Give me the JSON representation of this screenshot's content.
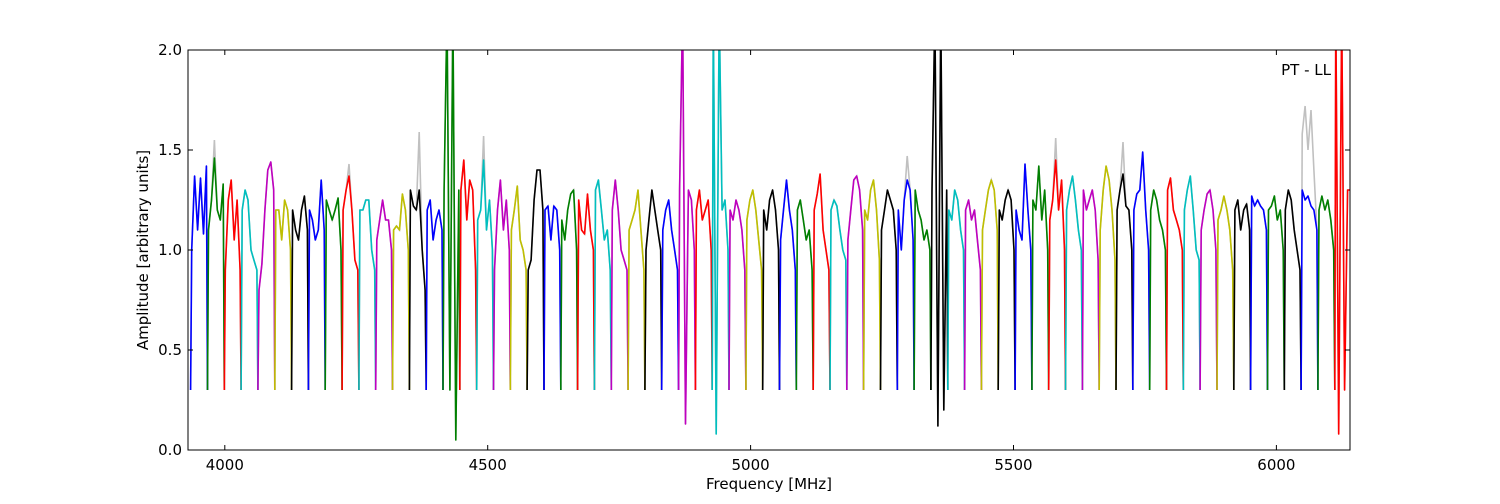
{
  "chart_data": {
    "type": "line",
    "title": "",
    "annotation": "PT - LL",
    "xlabel": "Frequency [MHz]",
    "ylabel": "Amplitude [arbitrary units]",
    "xlim": [
      3930,
      6140
    ],
    "ylim": [
      0,
      2
    ],
    "xticks": [
      4000,
      4500,
      5000,
      5500,
      6000
    ],
    "xtick_labels": [
      "4000",
      "4500",
      "5000",
      "5500",
      "6000"
    ],
    "yticks": [
      0,
      0.5,
      1,
      1.5,
      2
    ],
    "ytick_labels": [
      "0.0",
      "0.5",
      "1.0",
      "1.5",
      "2.0"
    ],
    "grid": false,
    "palette": {
      "b": "#0000ff",
      "g": "#008000",
      "r": "#ff0000",
      "c": "#00bfbf",
      "m": "#bf00bf",
      "y": "#bfbf00",
      "k": "#000000",
      "raw": "#c0c0c0"
    },
    "channel_width_mhz": 32,
    "edge_amplitude": 0.3,
    "channels": [
      {
        "f0": 3935,
        "color": "b",
        "levels": [
          1.0,
          1.37,
          1.1,
          1.36,
          1.08,
          1.42
        ]
      },
      {
        "f0": 3967,
        "color": "g",
        "levels": [
          1.1,
          1.25,
          1.46,
          1.2,
          1.15,
          1.33
        ],
        "raw": [
          1.1,
          1.25,
          1.55,
          1.2,
          1.15,
          1.33
        ]
      },
      {
        "f0": 3999,
        "color": "r",
        "levels": [
          0.9,
          1.25,
          1.35,
          1.05,
          1.25,
          0.9
        ]
      },
      {
        "f0": 4031,
        "color": "c",
        "levels": [
          1.2,
          1.3,
          1.25,
          1.0,
          0.95,
          0.9
        ]
      },
      {
        "f0": 4063,
        "color": "m",
        "levels": [
          0.8,
          0.93,
          1.2,
          1.4,
          1.44,
          1.3
        ]
      },
      {
        "f0": 4095,
        "color": "y",
        "levels": [
          1.2,
          1.2,
          1.05,
          1.25,
          1.2,
          1.0
        ]
      },
      {
        "f0": 4127,
        "color": "k",
        "levels": [
          1.2,
          1.1,
          1.05,
          1.2,
          1.27,
          1.1
        ]
      },
      {
        "f0": 4159,
        "color": "b",
        "levels": [
          1.2,
          1.15,
          1.05,
          1.1,
          1.35,
          1.1
        ]
      },
      {
        "f0": 4191,
        "color": "g",
        "levels": [
          1.25,
          1.2,
          1.15,
          1.2,
          1.26,
          1.0
        ]
      },
      {
        "f0": 4223,
        "color": "r",
        "levels": [
          1.2,
          1.3,
          1.37,
          1.2,
          0.95,
          0.9
        ],
        "raw": [
          1.2,
          1.3,
          1.43,
          1.2,
          0.95,
          0.9
        ]
      },
      {
        "f0": 4255,
        "color": "c",
        "levels": [
          1.2,
          1.2,
          1.25,
          1.25,
          1.0,
          0.9
        ]
      },
      {
        "f0": 4287,
        "color": "m",
        "levels": [
          1.05,
          1.15,
          1.25,
          1.15,
          1.15,
          1.0
        ]
      },
      {
        "f0": 4319,
        "color": "y",
        "levels": [
          1.1,
          1.12,
          1.1,
          1.28,
          1.2,
          1.0
        ]
      },
      {
        "f0": 4351,
        "color": "k",
        "levels": [
          1.3,
          1.22,
          1.2,
          1.3,
          1.0,
          0.8
        ],
        "raw": [
          1.3,
          1.22,
          1.2,
          1.59,
          1.0,
          0.8
        ]
      },
      {
        "f0": 4383,
        "color": "b",
        "levels": [
          1.2,
          1.25,
          1.05,
          1.15,
          1.2,
          1.1
        ]
      },
      {
        "f0": 4415,
        "color": "g",
        "levels": [
          1.3,
          2.2,
          0.3,
          2.2,
          0.05,
          1.3
        ]
      },
      {
        "f0": 4447,
        "color": "r",
        "levels": [
          1.3,
          1.45,
          1.15,
          1.35,
          1.3,
          0.9
        ]
      },
      {
        "f0": 4479,
        "color": "c",
        "levels": [
          1.15,
          1.2,
          1.45,
          1.1,
          1.25,
          1.0
        ],
        "raw": [
          1.15,
          1.2,
          1.57,
          1.1,
          1.25,
          1.0
        ]
      },
      {
        "f0": 4511,
        "color": "m",
        "levels": [
          0.9,
          1.2,
          1.35,
          1.1,
          1.25,
          1.0
        ]
      },
      {
        "f0": 4543,
        "color": "y",
        "levels": [
          1.1,
          1.2,
          1.32,
          1.05,
          1.0,
          0.9
        ]
      },
      {
        "f0": 4575,
        "color": "k",
        "levels": [
          0.9,
          0.95,
          1.25,
          1.4,
          1.4,
          1.2
        ]
      },
      {
        "f0": 4607,
        "color": "b",
        "levels": [
          1.2,
          1.22,
          1.05,
          1.22,
          1.2,
          1.0
        ]
      },
      {
        "f0": 4639,
        "color": "g",
        "levels": [
          1.15,
          1.05,
          1.2,
          1.28,
          1.3,
          1.0
        ]
      },
      {
        "f0": 4671,
        "color": "r",
        "levels": [
          1.25,
          1.1,
          1.08,
          1.28,
          1.1,
          1.0
        ]
      },
      {
        "f0": 4703,
        "color": "c",
        "levels": [
          1.3,
          1.35,
          1.2,
          1.05,
          1.1,
          0.9
        ]
      },
      {
        "f0": 4735,
        "color": "m",
        "levels": [
          1.2,
          1.35,
          1.2,
          1.0,
          0.95,
          0.9
        ]
      },
      {
        "f0": 4767,
        "color": "y",
        "levels": [
          1.1,
          1.15,
          1.2,
          1.3,
          1.1,
          0.9
        ]
      },
      {
        "f0": 4799,
        "color": "k",
        "levels": [
          1.0,
          1.15,
          1.3,
          1.2,
          1.1,
          1.0
        ]
      },
      {
        "f0": 4831,
        "color": "b",
        "levels": [
          1.1,
          1.2,
          1.25,
          1.1,
          1.0,
          0.9
        ]
      },
      {
        "f0": 4863,
        "color": "m",
        "levels": [
          1.3,
          2.2,
          0.13,
          1.3,
          1.25,
          1.0
        ]
      },
      {
        "f0": 4895,
        "color": "r",
        "levels": [
          1.2,
          1.3,
          1.15,
          1.2,
          1.25,
          1.0
        ]
      },
      {
        "f0": 4927,
        "color": "c",
        "levels": [
          2.2,
          0.08,
          2.2,
          1.2,
          1.25,
          1.0
        ]
      },
      {
        "f0": 4959,
        "color": "m",
        "levels": [
          1.2,
          1.15,
          1.25,
          1.2,
          1.1,
          0.9
        ]
      },
      {
        "f0": 4991,
        "color": "y",
        "levels": [
          1.15,
          1.25,
          1.3,
          1.2,
          1.05,
          0.9
        ]
      },
      {
        "f0": 5023,
        "color": "k",
        "levels": [
          1.2,
          1.1,
          1.25,
          1.3,
          1.2,
          1.0
        ]
      },
      {
        "f0": 5055,
        "color": "b",
        "levels": [
          1.05,
          1.2,
          1.35,
          1.2,
          1.1,
          0.9
        ]
      },
      {
        "f0": 5087,
        "color": "g",
        "levels": [
          1.2,
          1.25,
          1.15,
          1.05,
          1.1,
          0.9
        ]
      },
      {
        "f0": 5119,
        "color": "r",
        "levels": [
          1.2,
          1.28,
          1.38,
          1.1,
          1.0,
          0.9
        ]
      },
      {
        "f0": 5151,
        "color": "c",
        "levels": [
          1.2,
          1.25,
          1.22,
          1.1,
          1.0,
          0.95
        ]
      },
      {
        "f0": 5183,
        "color": "m",
        "levels": [
          1.05,
          1.2,
          1.35,
          1.37,
          1.3,
          1.1
        ]
      },
      {
        "f0": 5215,
        "color": "y",
        "levels": [
          1.2,
          1.15,
          1.3,
          1.35,
          1.2,
          0.95
        ]
      },
      {
        "f0": 5247,
        "color": "k",
        "levels": [
          1.1,
          1.2,
          1.3,
          1.25,
          1.2,
          1.0
        ]
      },
      {
        "f0": 5279,
        "color": "b",
        "levels": [
          1.2,
          1.0,
          1.25,
          1.35,
          1.3,
          1.05
        ],
        "raw": [
          1.2,
          1.0,
          1.25,
          1.47,
          1.3,
          1.05
        ]
      },
      {
        "f0": 5311,
        "color": "g",
        "levels": [
          1.3,
          1.2,
          1.15,
          1.05,
          1.1,
          1.0
        ]
      },
      {
        "f0": 5343,
        "color": "k",
        "levels": [
          1.3,
          2.2,
          0.12,
          2.2,
          0.2,
          1.3
        ]
      },
      {
        "f0": 5375,
        "color": "c",
        "levels": [
          1.2,
          1.15,
          1.3,
          1.25,
          1.1,
          1.0
        ]
      },
      {
        "f0": 5407,
        "color": "m",
        "levels": [
          1.2,
          1.25,
          1.15,
          1.2,
          1.05,
          0.9
        ]
      },
      {
        "f0": 5439,
        "color": "y",
        "levels": [
          1.1,
          1.2,
          1.3,
          1.35,
          1.3,
          1.1
        ]
      },
      {
        "f0": 5471,
        "color": "k",
        "levels": [
          1.2,
          1.15,
          1.25,
          1.3,
          1.25,
          1.0
        ]
      },
      {
        "f0": 5503,
        "color": "b",
        "levels": [
          1.2,
          1.1,
          1.05,
          1.43,
          1.2,
          1.0
        ]
      },
      {
        "f0": 5535,
        "color": "g",
        "levels": [
          1.25,
          1.2,
          1.42,
          1.15,
          1.3,
          1.0
        ]
      },
      {
        "f0": 5567,
        "color": "r",
        "levels": [
          1.15,
          1.25,
          1.45,
          1.2,
          1.35,
          1.0
        ],
        "raw": [
          1.15,
          1.25,
          1.56,
          1.2,
          1.35,
          1.0
        ]
      },
      {
        "f0": 5599,
        "color": "c",
        "levels": [
          1.2,
          1.3,
          1.37,
          1.25,
          1.1,
          1.0
        ]
      },
      {
        "f0": 5631,
        "color": "m",
        "levels": [
          1.3,
          1.2,
          1.25,
          1.3,
          1.2,
          0.95
        ]
      },
      {
        "f0": 5663,
        "color": "y",
        "levels": [
          1.1,
          1.3,
          1.42,
          1.35,
          1.2,
          0.95
        ]
      },
      {
        "f0": 5695,
        "color": "k",
        "levels": [
          1.2,
          1.3,
          1.38,
          1.22,
          1.2,
          1.0
        ],
        "raw": [
          1.2,
          1.3,
          1.54,
          1.22,
          1.2,
          1.0
        ]
      },
      {
        "f0": 5727,
        "color": "b",
        "levels": [
          1.2,
          1.28,
          1.3,
          1.49,
          1.2,
          1.0
        ]
      },
      {
        "f0": 5759,
        "color": "g",
        "levels": [
          1.2,
          1.3,
          1.25,
          1.15,
          1.1,
          1.0
        ]
      },
      {
        "f0": 5791,
        "color": "r",
        "levels": [
          1.3,
          1.36,
          1.2,
          1.15,
          1.1,
          1.0
        ]
      },
      {
        "f0": 5823,
        "color": "c",
        "levels": [
          1.2,
          1.3,
          1.37,
          1.2,
          1.0,
          0.95
        ]
      },
      {
        "f0": 5855,
        "color": "m",
        "levels": [
          1.1,
          1.2,
          1.28,
          1.3,
          1.2,
          1.0
        ]
      },
      {
        "f0": 5887,
        "color": "y",
        "levels": [
          1.15,
          1.2,
          1.27,
          1.2,
          1.1,
          0.9
        ]
      },
      {
        "f0": 5919,
        "color": "k",
        "levels": [
          1.2,
          1.25,
          1.1,
          1.2,
          1.23,
          1.1
        ]
      },
      {
        "f0": 5951,
        "color": "b",
        "levels": [
          1.27,
          1.22,
          1.25,
          1.22,
          1.2,
          1.1
        ]
      },
      {
        "f0": 5983,
        "color": "g",
        "levels": [
          1.2,
          1.22,
          1.27,
          1.15,
          1.2,
          1.0
        ]
      },
      {
        "f0": 6015,
        "color": "k",
        "levels": [
          1.2,
          1.3,
          1.25,
          1.1,
          1.0,
          0.9
        ]
      },
      {
        "f0": 6047,
        "color": "b",
        "levels": [
          1.3,
          1.25,
          1.27,
          1.22,
          1.2,
          1.1
        ],
        "raw": [
          1.58,
          1.72,
          1.5,
          1.7,
          1.4,
          1.1
        ]
      },
      {
        "f0": 6079,
        "color": "g",
        "levels": [
          1.2,
          1.27,
          1.2,
          1.25,
          1.15,
          1.0
        ]
      },
      {
        "f0": 6111,
        "color": "r",
        "levels": [
          2.2,
          0.08,
          2.2,
          0.3,
          1.3,
          1.3
        ]
      }
    ]
  }
}
